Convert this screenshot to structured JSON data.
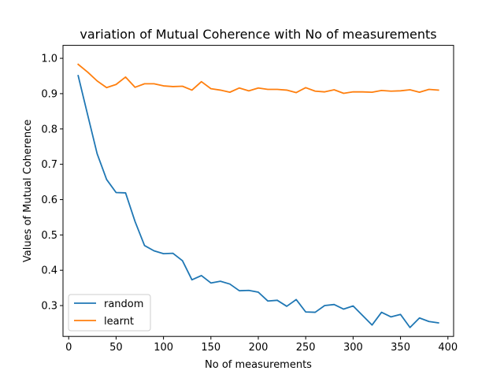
{
  "chart_data": {
    "type": "line",
    "title": "variation of Mutual Coherence with No of measurements",
    "xlabel": "No of measurements",
    "ylabel": "Values of Mutual Coherence",
    "xlim": [
      -6,
      406
    ],
    "ylim": [
      0.2127,
      1.0367
    ],
    "xticks": [
      0,
      50,
      100,
      150,
      200,
      250,
      300,
      350,
      400
    ],
    "yticks": [
      0.3,
      0.4,
      0.5,
      0.6,
      0.7,
      0.8,
      0.9,
      1.0
    ],
    "ytick_labels": [
      "0.3",
      "0.4",
      "0.5",
      "0.6",
      "0.7",
      "0.8",
      "0.9",
      "1.0"
    ],
    "legend_position": "lower left",
    "grid": false,
    "x": [
      10,
      20,
      30,
      40,
      50,
      60,
      70,
      80,
      90,
      100,
      110,
      120,
      130,
      140,
      150,
      160,
      170,
      180,
      190,
      200,
      210,
      220,
      230,
      240,
      250,
      260,
      270,
      280,
      290,
      300,
      310,
      320,
      330,
      340,
      350,
      360,
      370,
      380,
      390
    ],
    "series": [
      {
        "name": "random",
        "color": "#1f77b4",
        "values": [
          0.951,
          0.84,
          0.73,
          0.657,
          0.62,
          0.619,
          0.538,
          0.47,
          0.455,
          0.447,
          0.448,
          0.427,
          0.373,
          0.385,
          0.364,
          0.369,
          0.361,
          0.342,
          0.343,
          0.338,
          0.313,
          0.315,
          0.298,
          0.317,
          0.282,
          0.281,
          0.3,
          0.303,
          0.29,
          0.299,
          0.272,
          0.245,
          0.281,
          0.268,
          0.275,
          0.238,
          0.265,
          0.255,
          0.251
        ]
      },
      {
        "name": "learnt",
        "color": "#ff7f0e",
        "values": [
          0.983,
          0.961,
          0.936,
          0.917,
          0.926,
          0.947,
          0.918,
          0.928,
          0.928,
          0.922,
          0.92,
          0.921,
          0.91,
          0.934,
          0.914,
          0.91,
          0.904,
          0.916,
          0.908,
          0.916,
          0.912,
          0.912,
          0.91,
          0.903,
          0.917,
          0.907,
          0.905,
          0.911,
          0.901,
          0.905,
          0.905,
          0.904,
          0.909,
          0.907,
          0.908,
          0.911,
          0.904,
          0.912,
          0.91
        ]
      }
    ]
  }
}
